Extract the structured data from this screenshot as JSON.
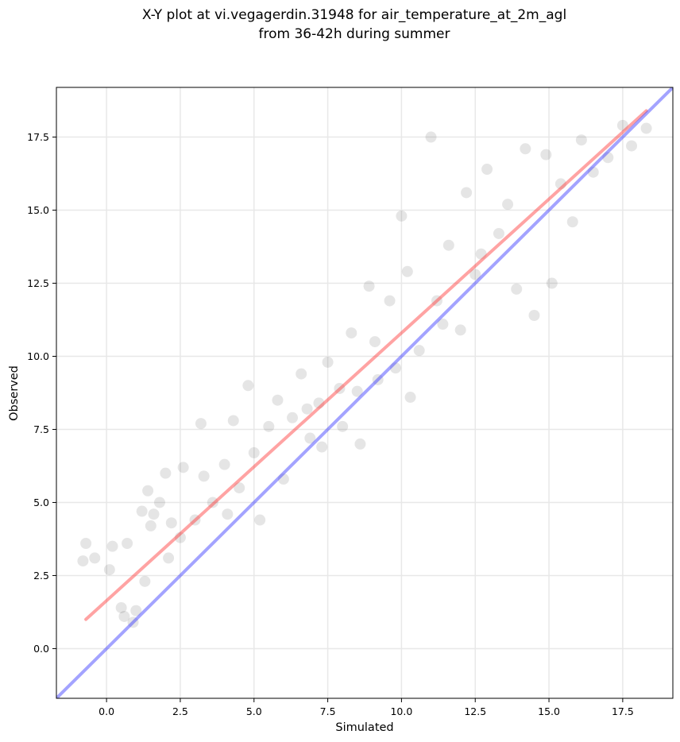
{
  "chart_data": {
    "type": "scatter",
    "title": "X-Y plot at vi.vegagerdin.31948 for air_temperature_at_2m_agl",
    "subtitle": "from 36-42h during summer",
    "xlabel": "Simulated",
    "ylabel": "Observed",
    "xlim": [
      -1.7,
      19.2
    ],
    "ylim": [
      -1.7,
      19.2
    ],
    "xticks": [
      0.0,
      2.5,
      5.0,
      7.5,
      10.0,
      12.5,
      15.0,
      17.5
    ],
    "yticks": [
      0.0,
      2.5,
      5.0,
      7.5,
      10.0,
      12.5,
      15.0,
      17.5
    ],
    "xtick_labels": [
      "0.0",
      "2.5",
      "5.0",
      "7.5",
      "10.0",
      "12.5",
      "15.0",
      "17.5"
    ],
    "ytick_labels": [
      "0.0",
      "2.5",
      "5.0",
      "7.5",
      "10.0",
      "12.5",
      "15.0",
      "17.5"
    ],
    "grid": true,
    "points": {
      "marker_color": "#000000",
      "marker_alpha": 0.1,
      "x": [
        -0.8,
        -0.7,
        -0.4,
        0.1,
        0.2,
        0.5,
        0.6,
        0.7,
        0.9,
        1.0,
        1.2,
        1.3,
        1.4,
        1.5,
        1.6,
        1.8,
        2.0,
        2.1,
        2.2,
        2.5,
        2.6,
        3.0,
        3.2,
        3.3,
        3.6,
        4.0,
        4.1,
        4.3,
        4.5,
        4.8,
        5.0,
        5.2,
        5.5,
        5.8,
        6.0,
        6.3,
        6.6,
        6.9,
        7.2,
        7.5,
        8.0,
        8.3,
        8.5,
        8.9,
        9.2,
        9.6,
        10.0,
        10.3,
        10.6,
        11.0,
        11.2,
        11.6,
        12.0,
        12.2,
        12.5,
        12.9,
        13.3,
        13.6,
        13.9,
        14.2,
        14.5,
        14.9,
        15.1,
        15.4,
        15.8,
        16.1,
        16.5,
        17.0,
        17.5,
        17.8,
        18.3,
        6.8,
        7.3,
        7.9,
        8.6,
        9.1,
        9.8,
        10.2,
        11.4,
        12.7
      ],
      "y": [
        3.0,
        3.6,
        3.1,
        2.7,
        3.5,
        1.4,
        1.1,
        3.6,
        0.9,
        1.3,
        4.7,
        2.3,
        5.4,
        4.2,
        4.6,
        5.0,
        6.0,
        3.1,
        4.3,
        3.8,
        6.2,
        4.4,
        7.7,
        5.9,
        5.0,
        6.3,
        4.6,
        7.8,
        5.5,
        9.0,
        6.7,
        4.4,
        7.6,
        8.5,
        5.8,
        7.9,
        9.4,
        7.2,
        8.4,
        9.8,
        7.6,
        10.8,
        8.8,
        12.4,
        9.2,
        11.9,
        14.8,
        8.6,
        10.2,
        17.5,
        11.9,
        13.8,
        10.9,
        15.6,
        12.8,
        16.4,
        14.2,
        15.2,
        12.3,
        17.1,
        11.4,
        16.9,
        12.5,
        15.9,
        14.6,
        17.4,
        16.3,
        16.8,
        17.9,
        17.2,
        17.8,
        8.2,
        6.9,
        8.9,
        7.0,
        10.5,
        9.6,
        12.9,
        11.1,
        13.5
      ]
    },
    "lines": [
      {
        "kind": "linear fit",
        "color": "#ff3333",
        "x": [
          -0.7,
          18.3
        ],
        "y": [
          1.0,
          18.4
        ]
      },
      {
        "kind": "1:1 line",
        "color": "#3333ff",
        "x": [
          -1.7,
          19.2
        ],
        "y": [
          -1.7,
          19.2
        ]
      }
    ]
  }
}
